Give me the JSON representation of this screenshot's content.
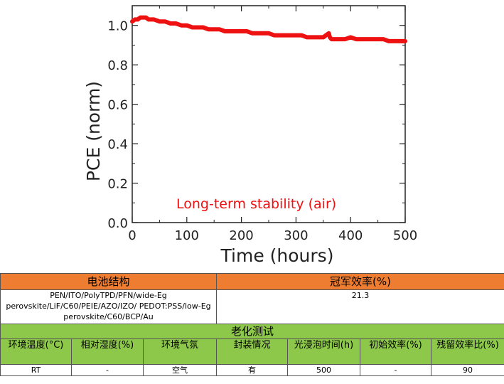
{
  "chart_data": {
    "type": "line",
    "title": "",
    "xlabel": "Time (hours)",
    "ylabel": "PCE (norm)",
    "xlim": [
      0,
      500
    ],
    "ylim": [
      0.0,
      1.1
    ],
    "x_ticks": [
      0,
      100,
      200,
      300,
      400,
      500
    ],
    "x_tick_labels": [
      "0",
      "100",
      "200",
      "300",
      "400",
      "500"
    ],
    "y_ticks": [
      0.0,
      0.2,
      0.4,
      0.6,
      0.8,
      1.0
    ],
    "y_tick_labels": [
      "0.0",
      "0.2",
      "0.4",
      "0.6",
      "0.8",
      "1.0"
    ],
    "grid": false,
    "annotation": "Long-term stability (air)",
    "series_color": "#ee1111",
    "annotation_color": "#ee1111",
    "series": [
      {
        "x": [
          0,
          5,
          10,
          15,
          20,
          25,
          30,
          40,
          50,
          60,
          70,
          80,
          90,
          100,
          110,
          120,
          130,
          140,
          150,
          160,
          170,
          180,
          190,
          200,
          210,
          220,
          230,
          240,
          250,
          260,
          270,
          280,
          290,
          300,
          310,
          320,
          330,
          340,
          350,
          355,
          360,
          362,
          365,
          370,
          380,
          390,
          400,
          410,
          420,
          430,
          440,
          450,
          460,
          470,
          480,
          490,
          500
        ],
        "y": [
          1.02,
          1.03,
          1.03,
          1.04,
          1.04,
          1.04,
          1.03,
          1.03,
          1.02,
          1.02,
          1.01,
          1.01,
          1.0,
          1.0,
          0.99,
          0.99,
          0.99,
          0.98,
          0.98,
          0.98,
          0.97,
          0.97,
          0.97,
          0.97,
          0.97,
          0.96,
          0.96,
          0.96,
          0.96,
          0.95,
          0.95,
          0.95,
          0.95,
          0.95,
          0.95,
          0.94,
          0.94,
          0.94,
          0.94,
          0.95,
          0.96,
          0.94,
          0.93,
          0.93,
          0.93,
          0.93,
          0.94,
          0.93,
          0.93,
          0.93,
          0.93,
          0.93,
          0.93,
          0.92,
          0.92,
          0.92,
          0.92
        ]
      }
    ]
  },
  "table": {
    "structure_header": "电池结构",
    "efficiency_header": "冠军效率(%)",
    "structure_value": "PEN/ITO/PolyTPD/PFN/wide-Eg perovskite/LiF/C60/PEIE/AZO/IZO/ PEDOT:PSS/low-Eg perovskite/C60/BCP/Au",
    "efficiency_value": "21.3",
    "aging_header": "老化测试",
    "columns": [
      "环境温度(°C)",
      "相对湿度(%)",
      "环境气氛",
      "封装情况",
      "光浸泡时间(h)",
      "初始效率(%)",
      "残留效率比(%)"
    ],
    "values": [
      "RT",
      "-",
      "空气",
      "有",
      "500",
      "-",
      "90"
    ]
  }
}
